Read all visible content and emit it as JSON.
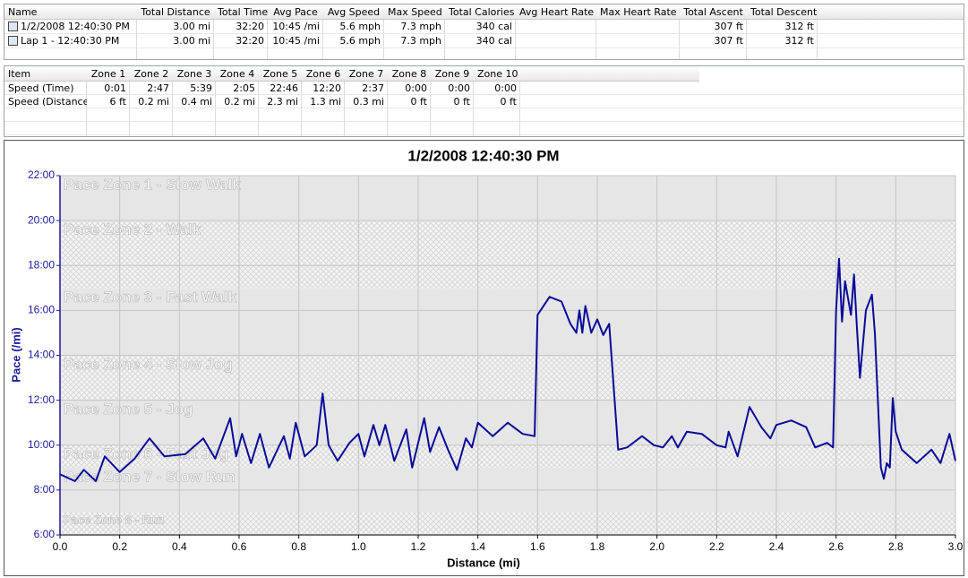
{
  "summary_table": {
    "columns": [
      "Name",
      "Total Distance",
      "Total Time",
      "Avg Pace",
      "Avg Speed",
      "Max Speed",
      "Total Calories",
      "Avg Heart Rate",
      "Max Heart Rate",
      "Total Ascent",
      "Total Descent"
    ],
    "rows": [
      [
        "1/2/2008 12:40:30 PM",
        "3.00 mi",
        "32:20",
        "10:45 /mi",
        "5.6 mph",
        "7.3 mph",
        "340 cal",
        null,
        null,
        "307 ft",
        "312 ft"
      ],
      [
        "Lap 1 - 12:40:30 PM",
        "3.00 mi",
        "32:20",
        "10:45 /mi",
        "5.6 mph",
        "7.3 mph",
        "340 cal",
        null,
        null,
        "307 ft",
        "312 ft"
      ]
    ]
  },
  "zone_table": {
    "columns": [
      "Item",
      "Zone 1",
      "Zone 2",
      "Zone 3",
      "Zone 4",
      "Zone 5",
      "Zone 6",
      "Zone 7",
      "Zone 8",
      "Zone 9",
      "Zone 10"
    ],
    "rows": [
      [
        "Speed (Time)",
        "0:01",
        "2:47",
        "5:39",
        "2:05",
        "22:46",
        "12:20",
        "2:37",
        "0:00",
        "0:00",
        "0:00"
      ],
      [
        "Speed (Distance)",
        "6 ft",
        "0.2 mi",
        "0.4 mi",
        "0.2 mi",
        "2.3 mi",
        "1.3 mi",
        "0.3 mi",
        "0 ft",
        "0 ft",
        "0 ft"
      ]
    ]
  },
  "chart_data": {
    "type": "line",
    "title": "1/2/2008 12:40:30 PM",
    "x_label": "Distance (mi)",
    "y_label": "Pace (/mi)",
    "color": "#0a0a9a",
    "grid": true,
    "xlim": [
      0,
      3.0
    ],
    "ylim": [
      6,
      22
    ],
    "xticks": [
      {
        "value": 0,
        "label": "0.0"
      },
      0.2,
      0.4,
      0.6,
      0.8,
      {
        "value": 1,
        "label": "1.0"
      },
      1.2,
      1.4,
      1.6,
      1.8,
      {
        "value": 2,
        "label": "2.0"
      },
      2.2,
      2.4,
      2.6,
      2.8,
      {
        "value": 3,
        "label": "3.0"
      }
    ],
    "yticks": [
      {
        "value": 6,
        "label": "6:00"
      },
      {
        "value": 8,
        "label": "8:00"
      },
      {
        "value": 10,
        "label": "10:00"
      },
      {
        "value": 12,
        "label": "12:00"
      },
      {
        "value": 14,
        "label": "14:00"
      },
      {
        "value": 16,
        "label": "16:00"
      },
      {
        "value": 18,
        "label": "18:00"
      },
      {
        "value": 20,
        "label": "20:00"
      },
      {
        "value": 22,
        "label": "22:00"
      }
    ],
    "zones": [
      {
        "name": "Pace Zone 1 - Slow Walk",
        "min": 20,
        "max": 22
      },
      {
        "name": "Pace Zone 2 - Walk",
        "min": 17,
        "max": 20
      },
      {
        "name": "Pace Zone 3 - Fast Walk",
        "min": 14,
        "max": 17
      },
      {
        "name": "Pace Zone 4 - Slow Jog",
        "min": 12,
        "max": 14
      },
      {
        "name": "Pace Zone 5 - Jog",
        "min": 10,
        "max": 12
      },
      {
        "name": "Pace Zone 6 - Fast Jog",
        "min": 9,
        "max": 10
      },
      {
        "name": "Pace Zone 7 - Slow Run",
        "min": 7,
        "max": 9
      },
      {
        "name": "Pace Zone 8 - Run",
        "min": 6,
        "max": 7
      }
    ],
    "x": [
      0,
      0.05,
      0.08,
      0.12,
      0.15,
      0.2,
      0.25,
      0.3,
      0.35,
      0.42,
      0.48,
      0.52,
      0.57,
      0.59,
      0.61,
      0.64,
      0.67,
      0.7,
      0.75,
      0.77,
      0.79,
      0.82,
      0.86,
      0.88,
      0.9,
      0.93,
      0.97,
      1.0,
      1.02,
      1.05,
      1.07,
      1.09,
      1.12,
      1.16,
      1.18,
      1.22,
      1.24,
      1.27,
      1.3,
      1.33,
      1.36,
      1.38,
      1.4,
      1.45,
      1.5,
      1.55,
      1.59,
      1.6,
      1.64,
      1.68,
      1.71,
      1.73,
      1.74,
      1.75,
      1.76,
      1.78,
      1.8,
      1.82,
      1.84,
      1.85,
      1.87,
      1.9,
      1.95,
      1.99,
      2.02,
      2.05,
      2.07,
      2.1,
      2.15,
      2.2,
      2.23,
      2.24,
      2.27,
      2.31,
      2.35,
      2.38,
      2.4,
      2.45,
      2.5,
      2.53,
      2.57,
      2.59,
      2.6,
      2.61,
      2.62,
      2.63,
      2.65,
      2.66,
      2.67,
      2.68,
      2.7,
      2.72,
      2.73,
      2.75,
      2.76,
      2.77,
      2.78,
      2.79,
      2.8,
      2.82,
      2.87,
      2.92,
      2.95,
      2.98,
      3.0
    ],
    "values": [
      8.7,
      8.4,
      8.9,
      8.4,
      9.5,
      8.8,
      9.4,
      10.3,
      9.5,
      9.6,
      10.3,
      9.4,
      11.2,
      9.5,
      10.5,
      9.2,
      10.5,
      9.0,
      10.4,
      9.4,
      11.0,
      9.5,
      10.0,
      12.3,
      10.0,
      9.3,
      10.1,
      10.5,
      9.5,
      10.9,
      10.0,
      10.9,
      9.3,
      10.7,
      9.0,
      11.2,
      9.7,
      10.8,
      9.8,
      8.9,
      10.3,
      9.9,
      11.0,
      10.4,
      11.0,
      10.5,
      10.4,
      15.8,
      16.6,
      16.4,
      15.4,
      15.0,
      16.0,
      15.0,
      16.2,
      15.0,
      15.6,
      14.9,
      15.4,
      13.5,
      9.8,
      9.9,
      10.4,
      10.0,
      9.9,
      10.4,
      9.9,
      10.6,
      10.5,
      10.0,
      9.9,
      10.6,
      9.5,
      11.7,
      10.8,
      10.3,
      10.9,
      11.1,
      10.8,
      9.9,
      10.1,
      9.9,
      16.0,
      18.3,
      15.5,
      17.3,
      15.8,
      17.6,
      15.2,
      13.0,
      16.0,
      16.7,
      15.0,
      9.0,
      8.5,
      9.2,
      9.0,
      12.1,
      10.6,
      9.8,
      9.2,
      9.8,
      9.2,
      10.5,
      9.3
    ]
  }
}
